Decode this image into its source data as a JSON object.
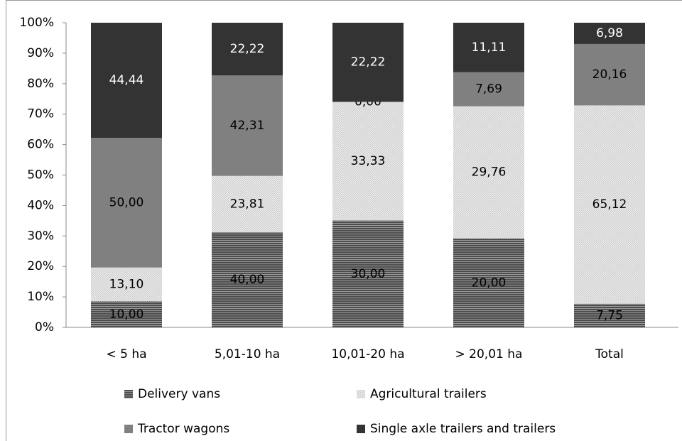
{
  "chart_data": {
    "type": "bar",
    "stacking": "percent",
    "categories": [
      "< 5 ha",
      "5,01-10 ha",
      "10,01-20 ha",
      "> 20,01 ha",
      "Total"
    ],
    "series": [
      {
        "name": "Delivery vans",
        "color": "#4d4d4d",
        "pattern": "horizontal-lines",
        "values": [
          10.0,
          40.0,
          30.0,
          20.0,
          7.75
        ],
        "value_labels": [
          "10,00",
          "40,00",
          "30,00",
          "20,00",
          "7,75"
        ]
      },
      {
        "name": "Agricultural trailers",
        "color": "#c8c8c8",
        "pattern": "dots",
        "values": [
          13.1,
          23.81,
          33.33,
          29.76,
          65.12
        ],
        "value_labels": [
          "13,10",
          "23,81",
          "33,33",
          "29,76",
          "65,12"
        ]
      },
      {
        "name": "Tractor wagons",
        "color": "#808080",
        "values": [
          50.0,
          42.31,
          0.0,
          7.69,
          20.16
        ],
        "value_labels": [
          "50,00",
          "42,31",
          "0,00",
          "7,69",
          "20,16"
        ]
      },
      {
        "name": "Single axle trailers and trailers",
        "color": "#333333",
        "values": [
          44.44,
          22.22,
          22.22,
          11.11,
          6.98
        ],
        "value_labels": [
          "44,44",
          "22,22",
          "22,22",
          "11,11",
          "6,98"
        ]
      }
    ],
    "ylim": [
      0,
      100
    ],
    "yticks": [
      {
        "value": 0,
        "label": "0%"
      },
      {
        "value": 10,
        "label": "10%"
      },
      {
        "value": 20,
        "label": "20%"
      },
      {
        "value": 30,
        "label": "30%"
      },
      {
        "value": 40,
        "label": "40%"
      },
      {
        "value": 50,
        "label": "50%"
      },
      {
        "value": 60,
        "label": "60%"
      },
      {
        "value": 70,
        "label": "70%"
      },
      {
        "value": 80,
        "label": "80%"
      },
      {
        "value": 90,
        "label": "90%"
      },
      {
        "value": 100,
        "label": "100%"
      }
    ],
    "legend": "bottom"
  }
}
